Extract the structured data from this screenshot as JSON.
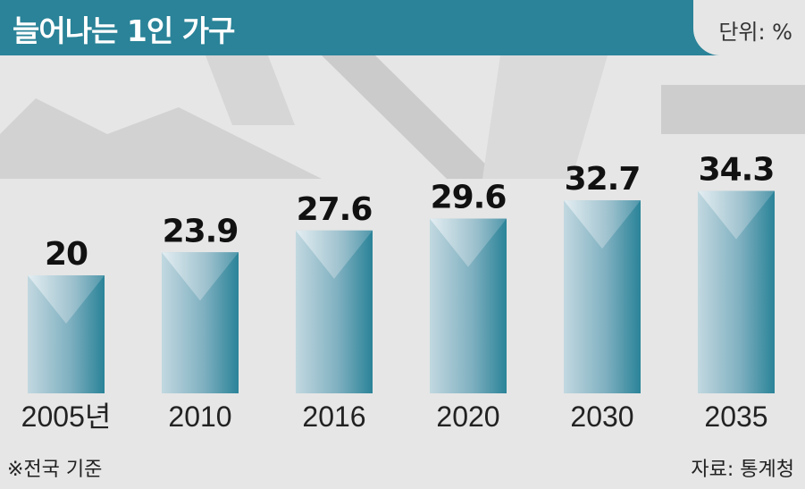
{
  "header": {
    "title": "늘어나는 1인 가구",
    "unit": "단위: %"
  },
  "footer": {
    "note": "※전국 기준",
    "source": "자료: 통계청"
  },
  "colors": {
    "header_bg": "#2a8398",
    "bar_light": "#b9d3dc",
    "bar_dark": "#2a8398",
    "background": "#e6e6e6",
    "backdrop": "#cfcfcf"
  },
  "chart_data": {
    "type": "bar",
    "title": "늘어나는 1인 가구",
    "unit": "단위: %",
    "categories": [
      "2005년",
      "2010",
      "2016",
      "2020",
      "2030",
      "2035"
    ],
    "values": [
      20,
      23.9,
      27.6,
      29.6,
      32.7,
      34.3
    ],
    "value_labels": [
      "20",
      "23.9",
      "27.6",
      "29.6",
      "32.7",
      "34.3"
    ],
    "grid": false,
    "legend": "none"
  }
}
